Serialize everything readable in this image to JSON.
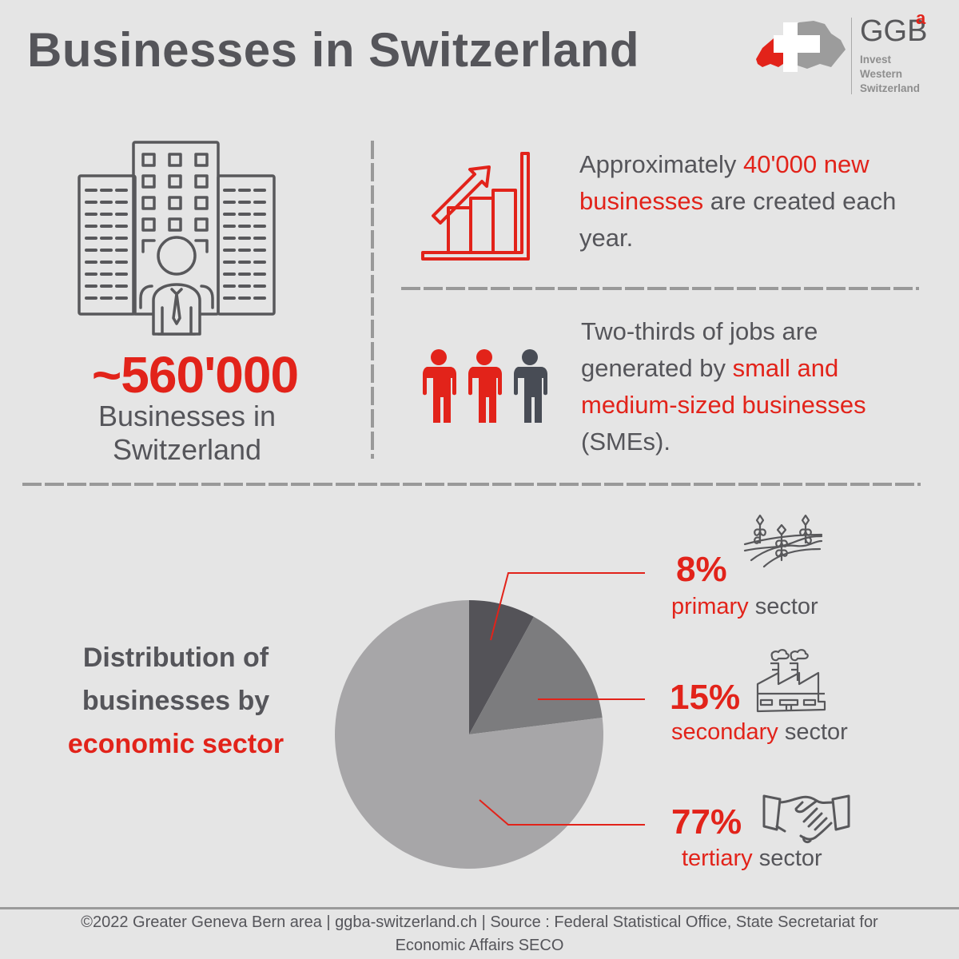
{
  "header": {
    "title": "Businesses in Switzerland",
    "logo": {
      "brand": "GGB",
      "superscript": "a",
      "tagline": [
        "Invest",
        "Western",
        "Switzerland"
      ],
      "icon": "swiss-map-cross-icon"
    }
  },
  "colors": {
    "accent_red": "#e2231a",
    "text_gray": "#55555a",
    "background": "#e5e5e5",
    "pie_primary": "#545358",
    "pie_secondary": "#7c7c7e",
    "pie_tertiary": "#a7a6a8"
  },
  "total_businesses": {
    "icon": "office-buildings-person-icon",
    "value": "~560'000",
    "label_line1": "Businesses in",
    "label_line2": "Switzerland"
  },
  "facts": [
    {
      "icon": "growth-bar-chart-icon",
      "pre": "Approximately ",
      "highlight": "40'000 new businesses",
      "post": " are created each year."
    },
    {
      "icon": "people-two-of-three-icon",
      "pre": "Two-thirds of jobs are generated by ",
      "highlight": "small and medium-sized businesses",
      "post": " (SMEs)."
    }
  ],
  "distribution": {
    "title_line1": "Distribution of",
    "title_line2": "businesses by",
    "title_highlight": "economic sector"
  },
  "chart_data": {
    "type": "pie",
    "title": "Distribution of businesses by economic sector",
    "categories": [
      "primary sector",
      "secondary sector",
      "tertiary sector"
    ],
    "values": [
      8,
      15,
      77
    ],
    "unit": "%",
    "colors": [
      "#545358",
      "#7c7c7e",
      "#a7a6a8"
    ],
    "start_angle_deg": 0,
    "direction": "clockwise",
    "legend_position": "right",
    "labels": [
      {
        "pct": "8%",
        "highlight": "primary",
        "rest": " sector",
        "icon": "wheat-field-icon"
      },
      {
        "pct": "15%",
        "highlight": "secondary",
        "rest": " sector",
        "icon": "factory-icon"
      },
      {
        "pct": "77%",
        "highlight": "tertiary",
        "rest": " sector",
        "icon": "handshake-icon"
      }
    ]
  },
  "footer": {
    "line1": "©2022 Greater Geneva Bern area | ggba-switzerland.ch | Source : Federal Statistical Office, State Secretariat for",
    "line2": "Economic Affairs SECO"
  }
}
